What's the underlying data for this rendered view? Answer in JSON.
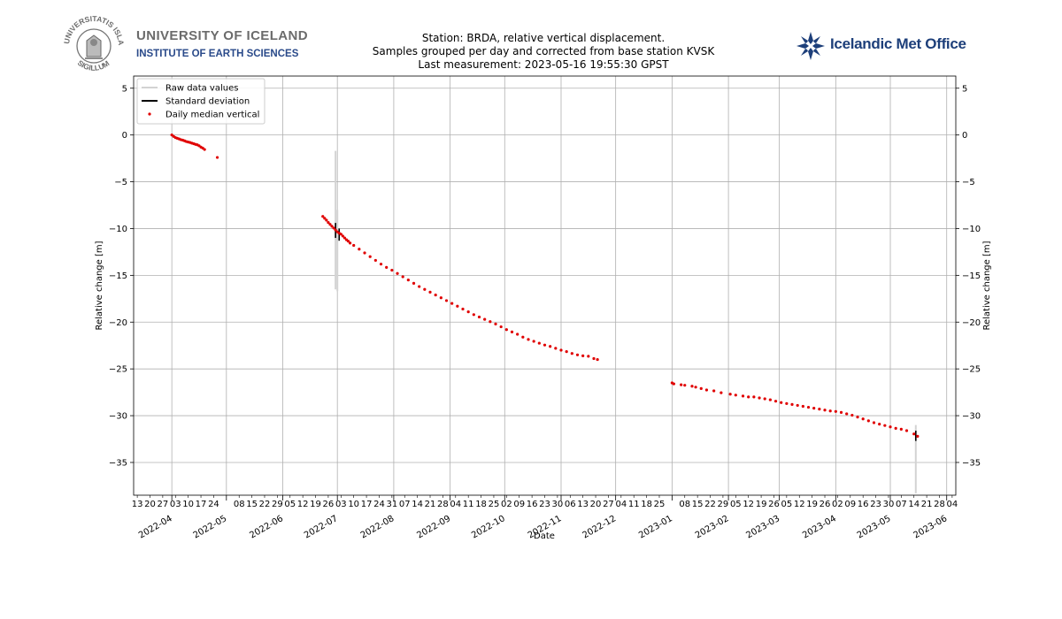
{
  "logos": {
    "university": {
      "name": "UNIVERSITY OF ICELAND",
      "institute": "INSTITUTE OF EARTH SCIENCES",
      "seal_text": "UNIVERSITATIS ISLANDIAE SIGILLUM",
      "name_color": "#6b6b6b",
      "institute_color": "#2a4a8a"
    },
    "met_office": {
      "name": "Icelandic Met Office",
      "color": "#1d3f7a",
      "icon": "snowflake-logo-icon"
    }
  },
  "chart_data": {
    "type": "scatter",
    "title": [
      "Station: BRDA, relative vertical displacement.",
      "Samples grouped per day and corrected from base station KVSK",
      "Last measurement: 2023-05-16 19:55:30 GPST"
    ],
    "xlabel": "Date",
    "ylabel": "Relative change [m]",
    "ylabel_right": "Relative change [m]",
    "xlim": [
      "2022-03-11",
      "2023-06-06"
    ],
    "ylim": [
      -38.5,
      6.3
    ],
    "yticks": [
      5,
      0,
      -5,
      -10,
      -15,
      -20,
      -25,
      -30,
      -35
    ],
    "ytick_labels": [
      "5",
      "0",
      "−5",
      "−10",
      "−15",
      "−20",
      "−25",
      "−30",
      "−35"
    ],
    "grid": true,
    "legend_position": "top-left",
    "legend": [
      {
        "label": "Raw data values",
        "type": "line",
        "color": "#d3d3d3"
      },
      {
        "label": "Standard deviation",
        "type": "line",
        "color": "#000000"
      },
      {
        "label": "Daily median vertical",
        "type": "marker",
        "color": "#e00000"
      }
    ],
    "x_major_ticks": [
      {
        "date": "2022-04-01",
        "label": "2022-04"
      },
      {
        "date": "2022-05-01",
        "label": "2022-05"
      },
      {
        "date": "2022-06-01",
        "label": "2022-06"
      },
      {
        "date": "2022-07-01",
        "label": "2022-07"
      },
      {
        "date": "2022-08-01",
        "label": "2022-08"
      },
      {
        "date": "2022-09-01",
        "label": "2022-09"
      },
      {
        "date": "2022-10-01",
        "label": "2022-10"
      },
      {
        "date": "2022-11-01",
        "label": "2022-11"
      },
      {
        "date": "2022-12-01",
        "label": "2022-12"
      },
      {
        "date": "2023-01-01",
        "label": "2023-01"
      },
      {
        "date": "2023-02-01",
        "label": "2023-02"
      },
      {
        "date": "2023-03-01",
        "label": "2023-03"
      },
      {
        "date": "2023-04-01",
        "label": "2023-04"
      },
      {
        "date": "2023-05-01",
        "label": "2023-05"
      },
      {
        "date": "2023-06-01",
        "label": "2023-06"
      }
    ],
    "x_minor_ticks": [
      {
        "date": "2022-03-13",
        "label": "13"
      },
      {
        "date": "2022-03-20",
        "label": "20"
      },
      {
        "date": "2022-03-27",
        "label": "27"
      },
      {
        "date": "2022-04-03",
        "label": "03"
      },
      {
        "date": "2022-04-10",
        "label": "10"
      },
      {
        "date": "2022-04-17",
        "label": "17"
      },
      {
        "date": "2022-04-24",
        "label": "24"
      },
      {
        "date": "2022-05-08",
        "label": "08"
      },
      {
        "date": "2022-05-15",
        "label": "15"
      },
      {
        "date": "2022-05-22",
        "label": "22"
      },
      {
        "date": "2022-05-29",
        "label": "29"
      },
      {
        "date": "2022-06-05",
        "label": "05"
      },
      {
        "date": "2022-06-12",
        "label": "12"
      },
      {
        "date": "2022-06-19",
        "label": "19"
      },
      {
        "date": "2022-06-26",
        "label": "26"
      },
      {
        "date": "2022-07-03",
        "label": "03"
      },
      {
        "date": "2022-07-10",
        "label": "10"
      },
      {
        "date": "2022-07-17",
        "label": "17"
      },
      {
        "date": "2022-07-24",
        "label": "24"
      },
      {
        "date": "2022-07-31",
        "label": "31"
      },
      {
        "date": "2022-08-07",
        "label": "07"
      },
      {
        "date": "2022-08-14",
        "label": "14"
      },
      {
        "date": "2022-08-21",
        "label": "21"
      },
      {
        "date": "2022-08-28",
        "label": "28"
      },
      {
        "date": "2022-09-04",
        "label": "04"
      },
      {
        "date": "2022-09-11",
        "label": "11"
      },
      {
        "date": "2022-09-18",
        "label": "18"
      },
      {
        "date": "2022-09-25",
        "label": "25"
      },
      {
        "date": "2022-10-02",
        "label": "02"
      },
      {
        "date": "2022-10-09",
        "label": "09"
      },
      {
        "date": "2022-10-16",
        "label": "16"
      },
      {
        "date": "2022-10-23",
        "label": "23"
      },
      {
        "date": "2022-10-30",
        "label": "30"
      },
      {
        "date": "2022-11-06",
        "label": "06"
      },
      {
        "date": "2022-11-13",
        "label": "13"
      },
      {
        "date": "2022-11-20",
        "label": "20"
      },
      {
        "date": "2022-11-27",
        "label": "27"
      },
      {
        "date": "2022-12-04",
        "label": "04"
      },
      {
        "date": "2022-12-11",
        "label": "11"
      },
      {
        "date": "2022-12-18",
        "label": "18"
      },
      {
        "date": "2022-12-25",
        "label": "25"
      },
      {
        "date": "2023-01-08",
        "label": "08"
      },
      {
        "date": "2023-01-15",
        "label": "15"
      },
      {
        "date": "2023-01-22",
        "label": "22"
      },
      {
        "date": "2023-01-29",
        "label": "29"
      },
      {
        "date": "2023-02-05",
        "label": "05"
      },
      {
        "date": "2023-02-12",
        "label": "12"
      },
      {
        "date": "2023-02-19",
        "label": "19"
      },
      {
        "date": "2023-02-26",
        "label": "26"
      },
      {
        "date": "2023-03-05",
        "label": "05"
      },
      {
        "date": "2023-03-12",
        "label": "12"
      },
      {
        "date": "2023-03-19",
        "label": "19"
      },
      {
        "date": "2023-03-26",
        "label": "26"
      },
      {
        "date": "2023-04-02",
        "label": "02"
      },
      {
        "date": "2023-04-09",
        "label": "09"
      },
      {
        "date": "2023-04-16",
        "label": "16"
      },
      {
        "date": "2023-04-23",
        "label": "23"
      },
      {
        "date": "2023-04-30",
        "label": "30"
      },
      {
        "date": "2023-05-07",
        "label": "07"
      },
      {
        "date": "2023-05-14",
        "label": "14"
      },
      {
        "date": "2023-05-21",
        "label": "21"
      },
      {
        "date": "2023-05-28",
        "label": "28"
      },
      {
        "date": "2023-06-04",
        "label": "04"
      }
    ],
    "series": [
      {
        "name": "Daily median vertical",
        "color": "#e00000",
        "points": [
          [
            "2022-04-01",
            0.0
          ],
          [
            "2022-04-02",
            -0.15
          ],
          [
            "2022-04-03",
            -0.28
          ],
          [
            "2022-04-04",
            -0.35
          ],
          [
            "2022-04-05",
            -0.42
          ],
          [
            "2022-04-06",
            -0.5
          ],
          [
            "2022-04-07",
            -0.55
          ],
          [
            "2022-04-08",
            -0.62
          ],
          [
            "2022-04-09",
            -0.7
          ],
          [
            "2022-04-10",
            -0.75
          ],
          [
            "2022-04-11",
            -0.8
          ],
          [
            "2022-04-12",
            -0.87
          ],
          [
            "2022-04-13",
            -0.93
          ],
          [
            "2022-04-14",
            -1.0
          ],
          [
            "2022-04-15",
            -1.05
          ],
          [
            "2022-04-16",
            -1.15
          ],
          [
            "2022-04-17",
            -1.3
          ],
          [
            "2022-04-18",
            -1.4
          ],
          [
            "2022-04-19",
            -1.55
          ],
          [
            "2022-04-26",
            -2.4
          ],
          [
            "2022-06-23",
            -8.7
          ],
          [
            "2022-06-24",
            -8.9
          ],
          [
            "2022-06-25",
            -9.1
          ],
          [
            "2022-06-26",
            -9.35
          ],
          [
            "2022-06-27",
            -9.55
          ],
          [
            "2022-06-28",
            -9.75
          ],
          [
            "2022-06-29",
            -9.95
          ],
          [
            "2022-06-30",
            -10.15
          ],
          [
            "2022-07-01",
            -10.35
          ],
          [
            "2022-07-02",
            -10.5
          ],
          [
            "2022-07-03",
            -10.6
          ],
          [
            "2022-07-04",
            -10.8
          ],
          [
            "2022-07-05",
            -11.0
          ],
          [
            "2022-07-06",
            -11.2
          ],
          [
            "2022-07-07",
            -11.35
          ],
          [
            "2022-07-08",
            -11.55
          ],
          [
            "2022-07-10",
            -11.8
          ],
          [
            "2022-07-13",
            -12.2
          ],
          [
            "2022-07-16",
            -12.6
          ],
          [
            "2022-07-19",
            -13.0
          ],
          [
            "2022-07-22",
            -13.4
          ],
          [
            "2022-07-25",
            -13.8
          ],
          [
            "2022-07-28",
            -14.15
          ],
          [
            "2022-07-31",
            -14.45
          ],
          [
            "2022-08-03",
            -14.8
          ],
          [
            "2022-08-06",
            -15.15
          ],
          [
            "2022-08-09",
            -15.5
          ],
          [
            "2022-08-12",
            -15.85
          ],
          [
            "2022-08-15",
            -16.2
          ],
          [
            "2022-08-18",
            -16.5
          ],
          [
            "2022-08-21",
            -16.8
          ],
          [
            "2022-08-24",
            -17.1
          ],
          [
            "2022-08-27",
            -17.4
          ],
          [
            "2022-08-30",
            -17.7
          ],
          [
            "2022-09-02",
            -18.0
          ],
          [
            "2022-09-05",
            -18.3
          ],
          [
            "2022-09-08",
            -18.6
          ],
          [
            "2022-09-11",
            -18.9
          ],
          [
            "2022-09-14",
            -19.2
          ],
          [
            "2022-09-17",
            -19.45
          ],
          [
            "2022-09-20",
            -19.7
          ],
          [
            "2022-09-23",
            -19.95
          ],
          [
            "2022-09-26",
            -20.2
          ],
          [
            "2022-09-29",
            -20.5
          ],
          [
            "2022-10-02",
            -20.8
          ],
          [
            "2022-10-05",
            -21.05
          ],
          [
            "2022-10-08",
            -21.3
          ],
          [
            "2022-10-11",
            -21.6
          ],
          [
            "2022-10-14",
            -21.85
          ],
          [
            "2022-10-17",
            -22.05
          ],
          [
            "2022-10-20",
            -22.25
          ],
          [
            "2022-10-23",
            -22.45
          ],
          [
            "2022-10-26",
            -22.6
          ],
          [
            "2022-10-29",
            -22.8
          ],
          [
            "2022-11-01",
            -23.0
          ],
          [
            "2022-11-04",
            -23.15
          ],
          [
            "2022-11-07",
            -23.35
          ],
          [
            "2022-11-10",
            -23.5
          ],
          [
            "2022-11-13",
            -23.6
          ],
          [
            "2022-11-16",
            -23.65
          ],
          [
            "2022-11-19",
            -23.9
          ],
          [
            "2022-11-21",
            -24.0
          ],
          [
            "2023-01-01",
            -26.5
          ],
          [
            "2023-01-02",
            -26.6
          ],
          [
            "2023-01-06",
            -26.7
          ],
          [
            "2023-01-08",
            -26.75
          ],
          [
            "2023-01-12",
            -26.85
          ],
          [
            "2023-01-14",
            -26.95
          ],
          [
            "2023-01-17",
            -27.1
          ],
          [
            "2023-01-20",
            -27.25
          ],
          [
            "2023-01-24",
            -27.35
          ],
          [
            "2023-01-28",
            -27.55
          ],
          [
            "2023-02-02",
            -27.7
          ],
          [
            "2023-02-05",
            -27.8
          ],
          [
            "2023-02-09",
            -27.9
          ],
          [
            "2023-02-12",
            -28.0
          ],
          [
            "2023-02-15",
            -28.0
          ],
          [
            "2023-02-18",
            -28.1
          ],
          [
            "2023-02-21",
            -28.2
          ],
          [
            "2023-02-24",
            -28.3
          ],
          [
            "2023-02-27",
            -28.45
          ],
          [
            "2023-03-02",
            -28.6
          ],
          [
            "2023-03-05",
            -28.7
          ],
          [
            "2023-03-08",
            -28.8
          ],
          [
            "2023-03-11",
            -28.9
          ],
          [
            "2023-03-14",
            -29.0
          ],
          [
            "2023-03-17",
            -29.1
          ],
          [
            "2023-03-20",
            -29.2
          ],
          [
            "2023-03-23",
            -29.3
          ],
          [
            "2023-03-26",
            -29.4
          ],
          [
            "2023-03-29",
            -29.5
          ],
          [
            "2023-04-01",
            -29.55
          ],
          [
            "2023-04-04",
            -29.65
          ],
          [
            "2023-04-07",
            -29.8
          ],
          [
            "2023-04-10",
            -29.95
          ],
          [
            "2023-04-13",
            -30.15
          ],
          [
            "2023-04-16",
            -30.35
          ],
          [
            "2023-04-19",
            -30.55
          ],
          [
            "2023-04-22",
            -30.75
          ],
          [
            "2023-04-25",
            -30.9
          ],
          [
            "2023-04-28",
            -31.05
          ],
          [
            "2023-05-01",
            -31.2
          ],
          [
            "2023-05-04",
            -31.35
          ],
          [
            "2023-05-07",
            -31.45
          ],
          [
            "2023-05-10",
            -31.6
          ],
          [
            "2023-05-14",
            -31.95
          ],
          [
            "2023-05-16",
            -32.2
          ]
        ]
      }
    ],
    "raw_data_ranges": [
      {
        "x": "2022-06-30",
        "ymin": -16.5,
        "ymax": -1.7
      },
      {
        "x": "2022-07-01",
        "ymin": -16.7,
        "ymax": -8.0
      },
      {
        "x": "2023-05-15",
        "ymin": -38.3,
        "ymax": -31.0
      }
    ],
    "std_dev_bars": [
      {
        "x": "2022-06-30",
        "ymin": -11.0,
        "ymax": -9.4
      },
      {
        "x": "2022-07-02",
        "ymin": -11.3,
        "ymax": -10.0
      },
      {
        "x": "2023-05-15",
        "ymin": -32.7,
        "ymax": -31.6
      }
    ]
  }
}
